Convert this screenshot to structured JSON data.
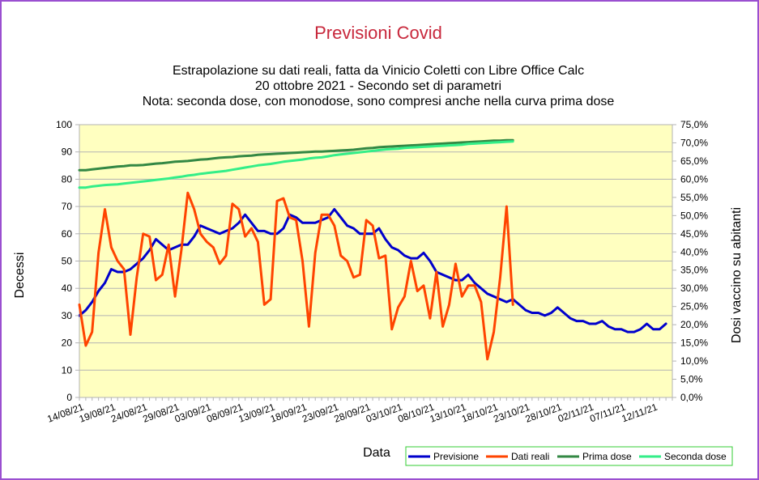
{
  "chart_data": {
    "type": "line",
    "title": "Previsioni Covid",
    "subtitle": [
      "Estrapolazione su dati reali, fatta da Vinicio Coletti con Libre Office Calc",
      "20 ottobre 2021 - Secondo set di parametri",
      "Nota: seconda dose, con monodose, sono compresi anche nella curva prima dose"
    ],
    "xlabel": "Data",
    "ylabel": "Decessi",
    "y2label": "Dosi vaccino su abitanti",
    "ylim": [
      0,
      100
    ],
    "y2lim": [
      0,
      75
    ],
    "yticks": [
      "0",
      "10",
      "20",
      "30",
      "40",
      "50",
      "60",
      "70",
      "80",
      "90",
      "100"
    ],
    "y2ticks": [
      "0,0%",
      "5,0%",
      "10,0%",
      "15,0%",
      "20,0%",
      "25,0%",
      "30,0%",
      "35,0%",
      "40,0%",
      "45,0%",
      "50,0%",
      "55,0%",
      "60,0%",
      "65,0%",
      "70,0%",
      "75,0%"
    ],
    "xticks": [
      "14/08/21",
      "19/08/21",
      "24/08/21",
      "29/08/21",
      "03/09/21",
      "08/09/21",
      "13/09/21",
      "18/09/21",
      "23/09/21",
      "28/09/21",
      "03/10/21",
      "08/10/21",
      "13/10/21",
      "18/10/21",
      "23/10/21",
      "28/10/21",
      "02/11/21",
      "07/11/21",
      "12/11/21"
    ],
    "x_start": "14/08/21",
    "x_end": "15/11/21",
    "x_unit": "days",
    "grid": "horizontal",
    "background": "#ffffc0",
    "legend_position": "bottom-right",
    "series": [
      {
        "name": "Previsione",
        "axis": "left",
        "color": "#0000cc",
        "values": [
          30,
          32,
          35,
          39,
          42,
          47,
          46,
          46,
          47,
          49,
          51,
          54,
          58,
          56,
          54,
          55,
          56,
          56,
          59,
          63,
          62,
          61,
          60,
          61,
          62,
          64,
          67,
          64,
          61,
          61,
          60,
          60,
          62,
          67,
          66,
          64,
          64,
          64,
          65,
          66,
          69,
          66,
          63,
          62,
          60,
          60,
          60,
          62,
          58,
          55,
          54,
          52,
          51,
          51,
          53,
          50,
          46,
          45,
          44,
          43,
          43,
          45,
          42,
          40,
          38,
          37,
          36,
          35,
          36,
          34,
          32,
          31,
          31,
          30,
          31,
          33,
          31,
          29,
          28,
          28,
          27,
          27,
          28,
          26,
          25,
          25,
          24,
          24,
          25,
          27,
          25,
          25,
          27
        ]
      },
      {
        "name": "Dati reali",
        "axis": "left",
        "color": "#ff4400",
        "values": [
          34,
          19,
          24,
          53,
          69,
          55,
          50,
          47,
          23,
          44,
          60,
          59,
          43,
          45,
          56,
          37,
          54,
          75,
          69,
          60,
          57,
          55,
          49,
          52,
          71,
          69,
          59,
          62,
          57,
          34,
          36,
          72,
          73,
          66,
          65,
          50,
          26,
          53,
          67,
          67,
          63,
          52,
          50,
          44,
          45,
          65,
          63,
          51,
          52,
          25,
          33,
          37,
          50,
          39,
          41,
          29,
          46,
          26,
          34,
          49,
          37,
          41,
          41,
          35,
          14,
          24,
          44,
          70,
          34
        ]
      },
      {
        "name": "Prima dose",
        "axis": "right",
        "color": "#338844",
        "values": [
          62.5,
          62.5,
          62.7,
          62.9,
          63.1,
          63.3,
          63.5,
          63.6,
          63.8,
          63.8,
          63.9,
          64.1,
          64.3,
          64.4,
          64.6,
          64.8,
          64.9,
          65.0,
          65.2,
          65.4,
          65.5,
          65.7,
          65.9,
          66.0,
          66.1,
          66.3,
          66.4,
          66.5,
          66.7,
          66.8,
          66.9,
          67.0,
          67.1,
          67.2,
          67.3,
          67.4,
          67.5,
          67.6,
          67.6,
          67.7,
          67.8,
          67.9,
          68.0,
          68.1,
          68.3,
          68.5,
          68.6,
          68.8,
          68.9,
          69.0,
          69.1,
          69.2,
          69.3,
          69.4,
          69.5,
          69.6,
          69.7,
          69.8,
          69.9,
          70.0,
          70.1,
          70.2,
          70.3,
          70.4,
          70.5,
          70.6,
          70.6,
          70.7,
          70.7
        ]
      },
      {
        "name": "Seconda dose",
        "axis": "right",
        "color": "#33ee88",
        "values": [
          57.7,
          57.7,
          58.0,
          58.2,
          58.4,
          58.5,
          58.6,
          58.8,
          59.0,
          59.2,
          59.4,
          59.6,
          59.8,
          60.0,
          60.2,
          60.5,
          60.7,
          61.0,
          61.2,
          61.5,
          61.7,
          61.9,
          62.1,
          62.3,
          62.6,
          62.9,
          63.2,
          63.5,
          63.8,
          64.0,
          64.2,
          64.5,
          64.8,
          65.0,
          65.2,
          65.4,
          65.7,
          65.9,
          66.0,
          66.3,
          66.6,
          66.8,
          67.0,
          67.2,
          67.4,
          67.6,
          67.8,
          68.0,
          68.2,
          68.3,
          68.4,
          68.6,
          68.7,
          68.8,
          68.9,
          69.0,
          69.1,
          69.2,
          69.3,
          69.4,
          69.5,
          69.7,
          69.8,
          69.9,
          70.0,
          70.1,
          70.2,
          70.3,
          70.4
        ]
      }
    ]
  }
}
